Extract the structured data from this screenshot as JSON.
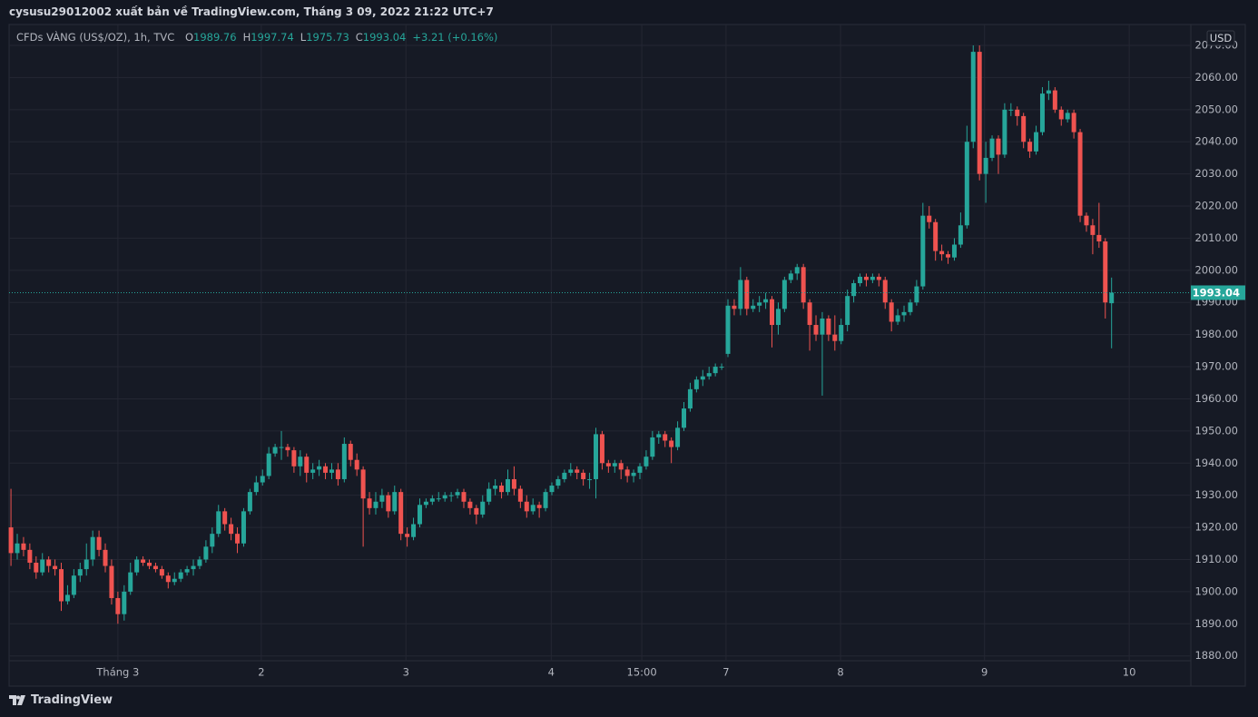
{
  "header": "cysusu29012002 xuất bản về TradingView.com, Tháng 3 09, 2022 21:22 UTC+7",
  "footer": "TradingView",
  "chart_data": {
    "type": "candlestick",
    "title": "CFDs VÀNG (US$/OZ), 1h, TVC",
    "ohlc_letters": [
      "O",
      "H",
      "L",
      "C"
    ],
    "change": "+3.21 (+0.16%)",
    "currency": "USD",
    "up_color": "#26a69a",
    "down_color": "#ef5350",
    "open": [
      1920,
      1912,
      1915,
      1913,
      1909,
      1906,
      1910,
      1908,
      1907,
      1897,
      1899,
      1905,
      1907,
      1910,
      1917,
      1913,
      1908,
      1898,
      1893,
      1900,
      1906,
      1910,
      1909,
      1908,
      1907,
      1905,
      1903,
      1904,
      1906,
      1907,
      1908,
      1910,
      1914,
      1918,
      1925,
      1921,
      1918,
      1915,
      1925,
      1931,
      1934,
      1936,
      1943,
      1945,
      1945,
      1944,
      1939,
      1942,
      1937,
      1938,
      1939,
      1937,
      1938,
      1935,
      1946,
      1941,
      1938,
      1929,
      1926,
      1928,
      1930,
      1925,
      1931,
      1918,
      1917,
      1921,
      1927,
      1928,
      1929,
      1929,
      1930,
      1930,
      1931,
      1928,
      1926,
      1924,
      1928,
      1932,
      1933,
      1931,
      1935,
      1932,
      1928,
      1925,
      1927,
      1926,
      1931,
      1933,
      1935,
      1937,
      1938,
      1937,
      1935,
      1935,
      1949,
      1940,
      1939,
      1940,
      1938,
      1936,
      1937,
      1939,
      1942,
      1948,
      1949,
      1947,
      1945,
      1951,
      1957,
      1963,
      1966,
      1967,
      1968,
      1970,
      1974,
      1989,
      1988,
      1997,
      1988,
      1989,
      1990,
      1991,
      1983,
      1988,
      1997,
      1999,
      2001,
      1990,
      1983,
      1980,
      1985,
      1980,
      1978,
      1983,
      1992,
      1996,
      1998,
      1997,
      1998,
      1997,
      1990,
      1984,
      1986,
      1987,
      1990,
      1995,
      2017,
      2015,
      2006,
      2005,
      2004,
      2008,
      2014,
      2040,
      2068,
      2030,
      2035,
      2041,
      2036,
      2050,
      2050,
      2048,
      2040,
      2037,
      2043,
      2055,
      2056,
      2050,
      2047,
      2049,
      2043,
      2017,
      2014,
      2011,
      2009,
      1989.76
    ],
    "high": [
      1932,
      1918,
      1917,
      1915,
      1911,
      1912,
      1911,
      1910,
      1909,
      1902,
      1907,
      1909,
      1915,
      1919,
      1919,
      1915,
      1910,
      1900,
      1902,
      1909,
      1911,
      1911,
      1910,
      1909,
      1908,
      1906,
      1906,
      1907,
      1908,
      1910,
      1911,
      1916,
      1920,
      1927,
      1926,
      1923,
      1920,
      1926,
      1932,
      1936,
      1938,
      1945,
      1946,
      1950,
      1946,
      1945,
      1944,
      1943,
      1940,
      1941,
      1940,
      1940,
      1940,
      1948,
      1947,
      1943,
      1939,
      1931,
      1931,
      1932,
      1931,
      1933,
      1932,
      1920,
      1923,
      1929,
      1929,
      1930,
      1931,
      1931,
      1931,
      1932,
      1932,
      1929,
      1927,
      1930,
      1934,
      1935,
      1934,
      1938,
      1939,
      1933,
      1930,
      1929,
      1928,
      1932,
      1934,
      1936,
      1938,
      1940,
      1939,
      1938,
      1937,
      1951,
      1950,
      1941,
      1941,
      1941,
      1939,
      1938,
      1940,
      1944,
      1950,
      1950,
      1950,
      1948,
      1953,
      1959,
      1965,
      1967,
      1969,
      1970,
      1971,
      1971,
      1991,
      1991,
      2001,
      1998,
      1991,
      1992,
      1993,
      1992,
      1990,
      1998,
      2000,
      2002,
      2002,
      1991,
      1986,
      1987,
      1986,
      1986,
      1985,
      1994,
      1997,
      1999,
      1999,
      1999,
      1999,
      1998,
      1991,
      1988,
      1989,
      1991,
      1997,
      2021,
      2020,
      2016,
      2008,
      2006,
      2010,
      2018,
      2045,
      2070,
      2070,
      2040,
      2042,
      2042,
      2052,
      2052,
      2051,
      2049,
      2041,
      2045,
      2057,
      2059,
      2057,
      2051,
      2050,
      2050,
      2044,
      2018,
      2016,
      2021,
      2010,
      1997.74
    ],
    "low": [
      1908,
      1910,
      1911,
      1907,
      1904,
      1905,
      1906,
      1905,
      1894,
      1896,
      1898,
      1903,
      1905,
      1908,
      1911,
      1906,
      1896,
      1890,
      1891,
      1899,
      1905,
      1908,
      1907,
      1906,
      1904,
      1901,
      1902,
      1903,
      1905,
      1905,
      1907,
      1909,
      1912,
      1917,
      1919,
      1916,
      1912,
      1914,
      1924,
      1930,
      1933,
      1935,
      1942,
      1941,
      1942,
      1937,
      1936,
      1934,
      1935,
      1936,
      1935,
      1935,
      1933,
      1934,
      1939,
      1936,
      1914,
      1924,
      1924,
      1926,
      1923,
      1924,
      1916,
      1914,
      1916,
      1920,
      1926,
      1927,
      1928,
      1928,
      1928,
      1929,
      1926,
      1924,
      1921,
      1923,
      1927,
      1930,
      1929,
      1930,
      1930,
      1926,
      1923,
      1924,
      1923,
      1925,
      1930,
      1932,
      1934,
      1936,
      1935,
      1933,
      1932,
      1929,
      1938,
      1937,
      1937,
      1935,
      1934,
      1934,
      1935,
      1938,
      1941,
      1946,
      1945,
      1940,
      1944,
      1950,
      1956,
      1962,
      1964,
      1966,
      1967,
      1969,
      1973,
      1986,
      1986,
      1986,
      1987,
      1987,
      1988,
      1976,
      1980,
      1987,
      1996,
      1997,
      1988,
      1975,
      1978,
      1961,
      1978,
      1975,
      1977,
      1981,
      1990,
      1995,
      1995,
      1996,
      1995,
      1988,
      1981,
      1983,
      1984,
      1986,
      1989,
      1994,
      2013,
      2003,
      2003,
      2002,
      2003,
      2007,
      2013,
      2038,
      2028,
      2021,
      2034,
      2030,
      2035,
      2048,
      2045,
      2038,
      2035,
      2036,
      2042,
      2053,
      2049,
      2045,
      2046,
      2041,
      2015,
      2012,
      2005,
      2007,
      1985,
      1975.73
    ],
    "close": [
      1912,
      1915,
      1913,
      1909,
      1906,
      1910,
      1908,
      1907,
      1897,
      1899,
      1905,
      1907,
      1910,
      1917,
      1913,
      1908,
      1898,
      1893,
      1900,
      1906,
      1910,
      1909,
      1908,
      1907,
      1905,
      1903,
      1904,
      1906,
      1907,
      1908,
      1910,
      1914,
      1918,
      1925,
      1921,
      1918,
      1915,
      1925,
      1931,
      1934,
      1936,
      1943,
      1945,
      1945,
      1944,
      1939,
      1942,
      1937,
      1938,
      1939,
      1937,
      1938,
      1935,
      1946,
      1941,
      1938,
      1929,
      1926,
      1928,
      1930,
      1925,
      1931,
      1918,
      1917,
      1921,
      1927,
      1928,
      1929,
      1929,
      1930,
      1930,
      1931,
      1928,
      1926,
      1924,
      1928,
      1932,
      1933,
      1931,
      1935,
      1932,
      1928,
      1925,
      1927,
      1926,
      1931,
      1933,
      1935,
      1937,
      1938,
      1937,
      1935,
      1935,
      1949,
      1940,
      1939,
      1940,
      1938,
      1936,
      1937,
      1939,
      1942,
      1948,
      1949,
      1947,
      1945,
      1951,
      1957,
      1963,
      1966,
      1967,
      1968,
      1970,
      1970,
      1989,
      1988,
      1997,
      1988,
      1989,
      1990,
      1991,
      1983,
      1988,
      1997,
      1999,
      2001,
      1990,
      1983,
      1980,
      1985,
      1980,
      1978,
      1983,
      1992,
      1996,
      1998,
      1997,
      1998,
      1997,
      1990,
      1984,
      1986,
      1987,
      1990,
      1995,
      2017,
      2015,
      2006,
      2005,
      2004,
      2008,
      2014,
      2040,
      2068,
      2030,
      2035,
      2041,
      2036,
      2050,
      2050,
      2048,
      2040,
      2037,
      2043,
      2055,
      2056,
      2050,
      2047,
      2049,
      2043,
      2017,
      2014,
      2011,
      2009,
      1990,
      1993.04
    ],
    "xlim": [
      -0.3,
      187.6
    ],
    "xticks": [
      {
        "value": 17,
        "label": "Tháng 3"
      },
      {
        "value": 39.8,
        "label": "2"
      },
      {
        "value": 62.8,
        "label": "3"
      },
      {
        "value": 85.9,
        "label": "4"
      },
      {
        "value": 100.3,
        "label": "15:00"
      },
      {
        "value": 113.7,
        "label": "7"
      },
      {
        "value": 131.9,
        "label": "8"
      },
      {
        "value": 154.8,
        "label": "9"
      },
      {
        "value": 177.8,
        "label": "10"
      }
    ],
    "ylim": [
      1878.5,
      2076.5
    ],
    "yticks": [
      {
        "value": 1880,
        "label": "1880.00"
      },
      {
        "value": 1890,
        "label": "1890.00"
      },
      {
        "value": 1900,
        "label": "1900.00"
      },
      {
        "value": 1910,
        "label": "1910.00"
      },
      {
        "value": 1920,
        "label": "1920.00"
      },
      {
        "value": 1930,
        "label": "1930.00"
      },
      {
        "value": 1940,
        "label": "1940.00"
      },
      {
        "value": 1950,
        "label": "1950.00"
      },
      {
        "value": 1960,
        "label": "1960.00"
      },
      {
        "value": 1970,
        "label": "1970.00"
      },
      {
        "value": 1980,
        "label": "1980.00"
      },
      {
        "value": 1990,
        "label": "1990.00"
      },
      {
        "value": 2000,
        "label": "2000.00"
      },
      {
        "value": 2010,
        "label": "2010.00"
      },
      {
        "value": 2020,
        "label": "2020.00"
      },
      {
        "value": 2030,
        "label": "2030.00"
      },
      {
        "value": 2040,
        "label": "2040.00"
      },
      {
        "value": 2050,
        "label": "2050.00"
      },
      {
        "value": 2060,
        "label": "2060.00"
      },
      {
        "value": 2070,
        "label": "2070.00"
      }
    ],
    "grid": true,
    "last_price_line": true
  }
}
